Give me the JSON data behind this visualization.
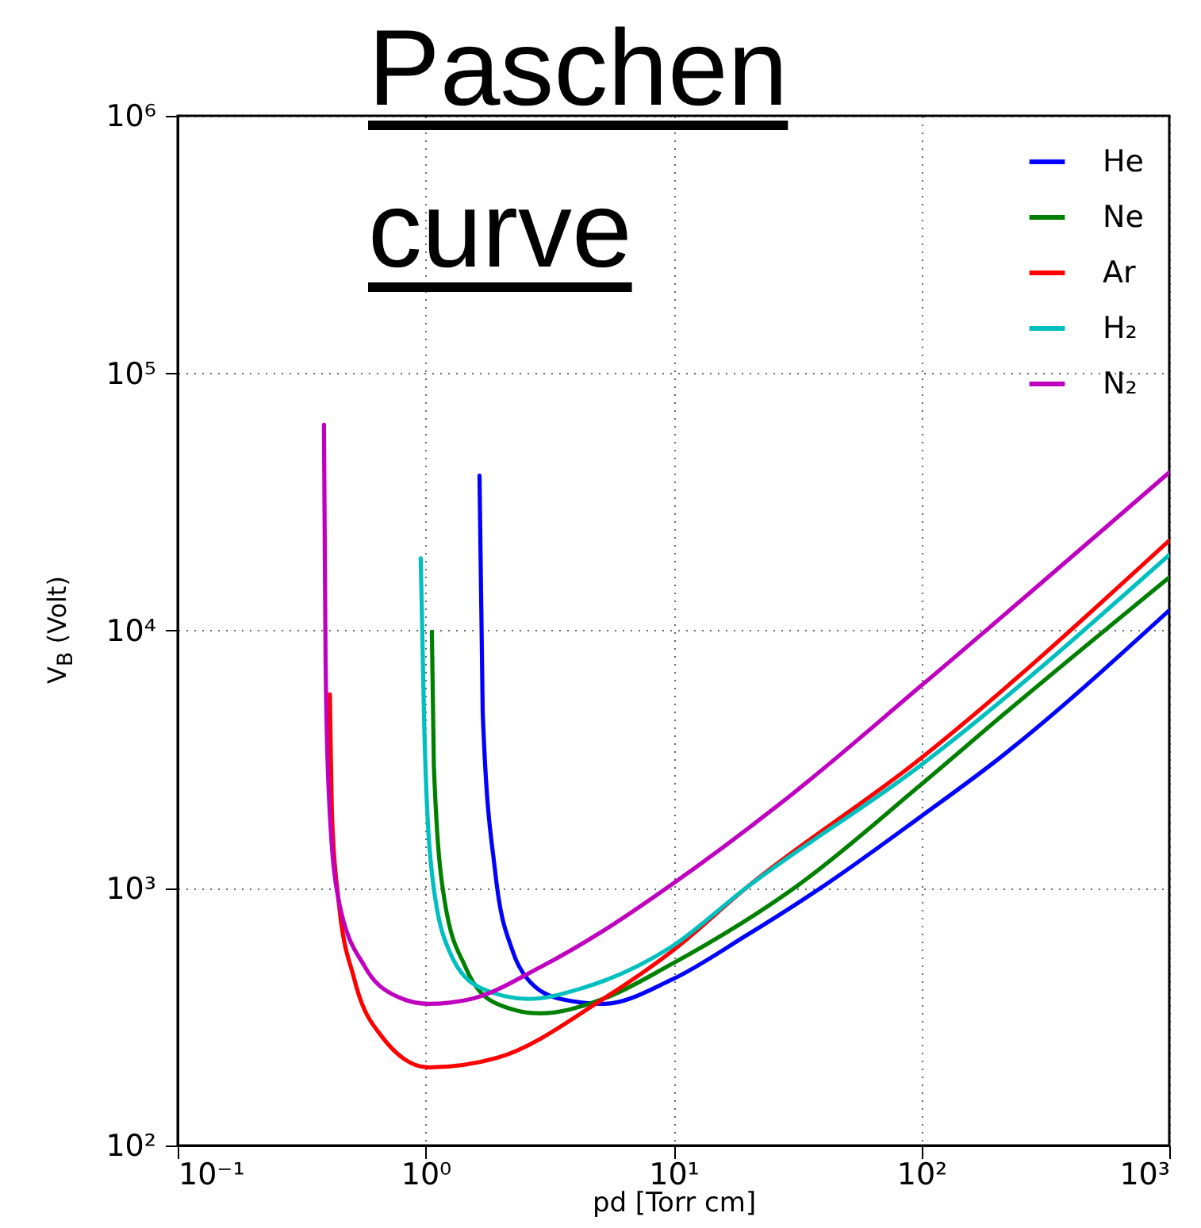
{
  "chart_data": {
    "type": "line",
    "title": "Paschen curve",
    "xlabel": "pd [Torr cm]",
    "ylabel": "V$_{B}$  (Volt)",
    "log": "xy",
    "grid": true,
    "legend": "top right",
    "xlim": [
      0.1,
      1000
    ],
    "ylim": [
      100,
      1000000
    ],
    "xticks": [
      {
        "value": 0.1,
        "label": "10⁻¹"
      },
      {
        "value": 1,
        "label": "10⁰"
      },
      {
        "value": 10,
        "label": "10¹"
      },
      {
        "value": 100,
        "label": "10²"
      },
      {
        "value": 1000,
        "label": "10³"
      }
    ],
    "yticks": [
      {
        "value": 100,
        "label": "10²"
      },
      {
        "value": 1000,
        "label": "10³"
      },
      {
        "value": 10000,
        "label": "10⁴"
      },
      {
        "value": 100000,
        "label": "10⁵"
      },
      {
        "value": 1000000,
        "label": "10⁶"
      }
    ],
    "series": [
      {
        "name": "He",
        "color": "#0000ff",
        "x": [
          1.65,
          1.7,
          1.91,
          2.25,
          2.57,
          3.5,
          5.2,
          9.8,
          19.6,
          41,
          99,
          199,
          1000
        ],
        "values": [
          40000,
          4800,
          1150,
          566,
          445,
          371,
          355,
          440,
          653,
          1030,
          1890,
          3110,
          12000
        ]
      },
      {
        "name": "Ne",
        "color": "#008000",
        "x": [
          1.06,
          1.08,
          1.19,
          1.45,
          1.94,
          2.89,
          5.2,
          9.8,
          32,
          99,
          217,
          1000
        ],
        "values": [
          9900,
          2990,
          906,
          492,
          355,
          326,
          371,
          506,
          1030,
          2510,
          4770,
          16100
        ]
      },
      {
        "name": "Ar",
        "color": "#ff0000",
        "x": [
          0.411,
          0.42,
          0.445,
          0.515,
          0.662,
          1.03,
          1.94,
          5.2,
          9.8,
          19.6,
          99,
          1000
        ],
        "values": [
          5650,
          1840,
          906,
          445,
          267,
          201,
          219,
          371,
          566,
          1000,
          3180,
          22400
        ]
      },
      {
        "name": "H₂",
        "color": "#00bfbf",
        "x": [
          0.956,
          0.985,
          1.06,
          1.25,
          1.67,
          2.6,
          4.3,
          9.8,
          19.6,
          99,
          1000
        ],
        "values": [
          19100,
          4760,
          1150,
          566,
          409,
          371,
          409,
          591,
          1000,
          2990,
          19700
        ]
      },
      {
        "name": "N₂",
        "color": "#bf00bf",
        "x": [
          0.389,
          0.395,
          0.407,
          0.445,
          0.571,
          0.734,
          1.03,
          1.53,
          2.89,
          5.2,
          9.8,
          30.5,
          99,
          1000
        ],
        "values": [
          63100,
          7600,
          2340,
          906,
          492,
          387,
          355,
          371,
          492,
          682,
          1030,
          2340,
          6070,
          41200
        ]
      }
    ]
  }
}
